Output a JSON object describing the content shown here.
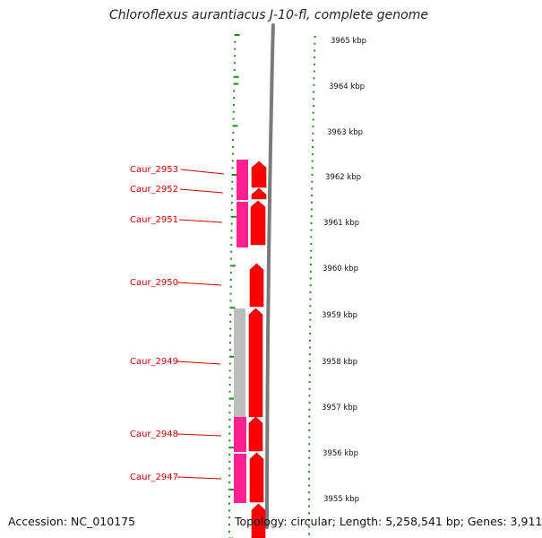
{
  "title": "Chloroflexus aurantiacus J-10-fl, complete genome",
  "footer": {
    "accession": "Accession: NC_010175",
    "summary": "Topology: circular; Length: 5,258,541 bp; Genes: 3,911"
  },
  "colors": {
    "dots": "#1f8a1f",
    "cds_red": "#ff0000",
    "cds_red_edge": "#c40000",
    "cds_pink": "#ff2090",
    "cds_grey": "#bdbdbd",
    "backbone": "#7a7a7a",
    "leader": "#d40000"
  },
  "scale_labels": [
    "3965 kbp",
    "3964 kbp",
    "3963 kbp",
    "3962 kbp",
    "3961 kbp",
    "3960 kbp",
    "3959 kbp",
    "3958 kbp",
    "3957 kbp",
    "3956 kbp",
    "3955 kbp"
  ],
  "gene_labels": [
    "Caur_2953",
    "Caur_2952",
    "Caur_2951",
    "Caur_2950",
    "Caur_2949",
    "Caur_2948",
    "Caur_2947"
  ]
}
